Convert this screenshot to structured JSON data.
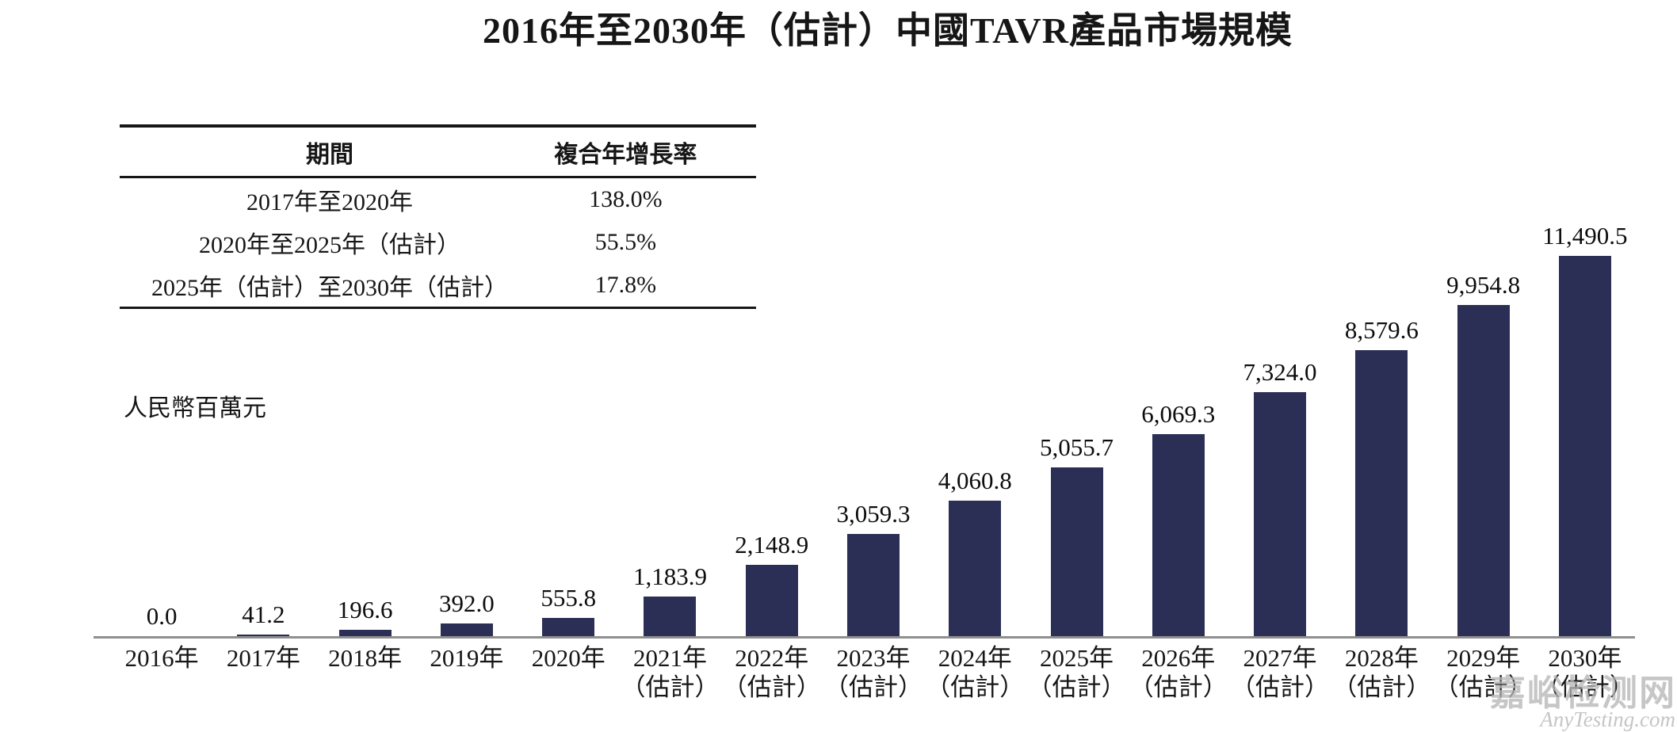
{
  "title": "2016年至2030年（估計）中國TAVR產品市場規模",
  "cagr_table": {
    "headers": {
      "period": "期間",
      "cagr": "複合年增長率"
    },
    "rows": [
      {
        "period": "2017年至2020年",
        "cagr": "138.0%"
      },
      {
        "period": "2020年至2025年（估計）",
        "cagr": "55.5%"
      },
      {
        "period": "2025年（估計）至2030年（估計）",
        "cagr": "17.8%"
      }
    ]
  },
  "unit_label": "人民幣百萬元",
  "watermark": {
    "line1": "嘉峪检测网",
    "line2": "AnyTesting.com"
  },
  "colors": {
    "bar": "#2b2f56",
    "axis": "#8f8f8f",
    "watermark": "#bcbcbc"
  },
  "chart_data": {
    "type": "bar",
    "title": "2016年至2030年（估計）中國TAVR產品市場規模",
    "ylabel": "人民幣百萬元",
    "xlabel": "",
    "ylim": [
      0,
      11490.5
    ],
    "grid": false,
    "legend": "none",
    "categories": [
      "2016年",
      "2017年",
      "2018年",
      "2019年",
      "2020年",
      "2021年（估計）",
      "2022年（估計）",
      "2023年（估計）",
      "2024年（估計）",
      "2025年（估計）",
      "2026年（估計）",
      "2027年（估計）",
      "2028年（估計）",
      "2029年（估計）",
      "2030年（估計）"
    ],
    "category_line1": [
      "2016年",
      "2017年",
      "2018年",
      "2019年",
      "2020年",
      "2021年",
      "2022年",
      "2023年",
      "2024年",
      "2025年",
      "2026年",
      "2027年",
      "2028年",
      "2029年",
      "2030年"
    ],
    "category_line2": [
      "",
      "",
      "",
      "",
      "",
      "（估計）",
      "（估計）",
      "（估計）",
      "（估計）",
      "（估計）",
      "（估計）",
      "（估計）",
      "（估計）",
      "（估計）",
      "（估計）"
    ],
    "values": [
      0.0,
      41.2,
      196.6,
      392.0,
      555.8,
      1183.9,
      2148.9,
      3059.3,
      4060.8,
      5055.7,
      6069.3,
      7324.0,
      8579.6,
      9954.8,
      11490.5
    ],
    "value_labels": [
      "0.0",
      "41.2",
      "196.6",
      "392.0",
      "555.8",
      "1,183.9",
      "2,148.9",
      "3,059.3",
      "4,060.8",
      "5,055.7",
      "6,069.3",
      "7,324.0",
      "8,579.6",
      "9,954.8",
      "11,490.5"
    ],
    "cagr_annotations": [
      {
        "period": "2017年至2020年",
        "cagr_pct": 138.0
      },
      {
        "period": "2020年至2025年（估計）",
        "cagr_pct": 55.5
      },
      {
        "period": "2025年（估計）至2030年（估計）",
        "cagr_pct": 17.8
      }
    ]
  }
}
